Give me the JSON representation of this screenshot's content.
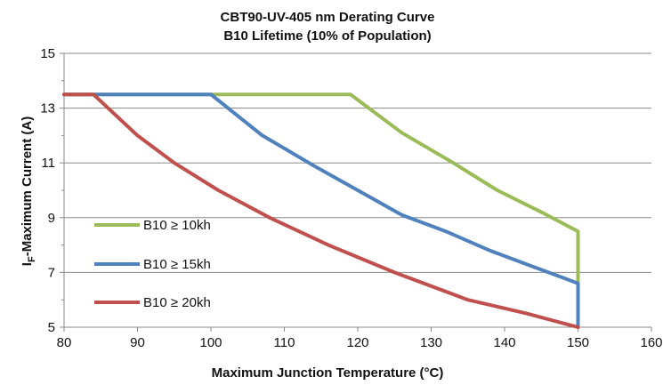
{
  "chart_data": {
    "type": "line",
    "title": "CBT90-UV-405 nm Derating Curve",
    "subtitle": "B10 Lifetime (10% of Population)",
    "xlabel": "Maximum Junction Temperature (°C)",
    "ylabel_main": "I",
    "ylabel_sub": "F",
    "ylabel_rest": "-Maximum Current (A)",
    "xlim": [
      80,
      160
    ],
    "ylim": [
      5,
      15
    ],
    "x_ticks": [
      80,
      90,
      100,
      110,
      120,
      130,
      140,
      150,
      160
    ],
    "y_ticks": [
      5,
      7,
      9,
      11,
      13,
      15
    ],
    "grid": true,
    "legend_position": "left",
    "series": [
      {
        "name": "B10 ≥ 10kh",
        "color": "#9BBB59",
        "points": [
          [
            80,
            13.5
          ],
          [
            119,
            13.5
          ],
          [
            126,
            12.1
          ],
          [
            133,
            11.0
          ],
          [
            139,
            10.0
          ],
          [
            145,
            9.2
          ],
          [
            150,
            8.5
          ],
          [
            150,
            5.0
          ]
        ]
      },
      {
        "name": "B10 ≥ 15kh",
        "color": "#4F81BD",
        "points": [
          [
            80,
            13.5
          ],
          [
            100,
            13.5
          ],
          [
            107,
            12.0
          ],
          [
            114,
            10.9
          ],
          [
            120,
            10.0
          ],
          [
            126,
            9.1
          ],
          [
            132,
            8.5
          ],
          [
            138,
            7.8
          ],
          [
            143,
            7.3
          ],
          [
            150,
            6.6
          ],
          [
            150,
            5.0
          ]
        ]
      },
      {
        "name": "B10 ≥ 20kh",
        "color": "#C0504D",
        "points": [
          [
            80,
            13.5
          ],
          [
            84,
            13.5
          ],
          [
            90,
            12.0
          ],
          [
            95,
            11.0
          ],
          [
            101,
            10.0
          ],
          [
            108,
            9.0
          ],
          [
            116,
            8.0
          ],
          [
            125,
            7.0
          ],
          [
            135,
            6.0
          ],
          [
            143,
            5.5
          ],
          [
            150,
            5.0
          ]
        ]
      }
    ]
  }
}
